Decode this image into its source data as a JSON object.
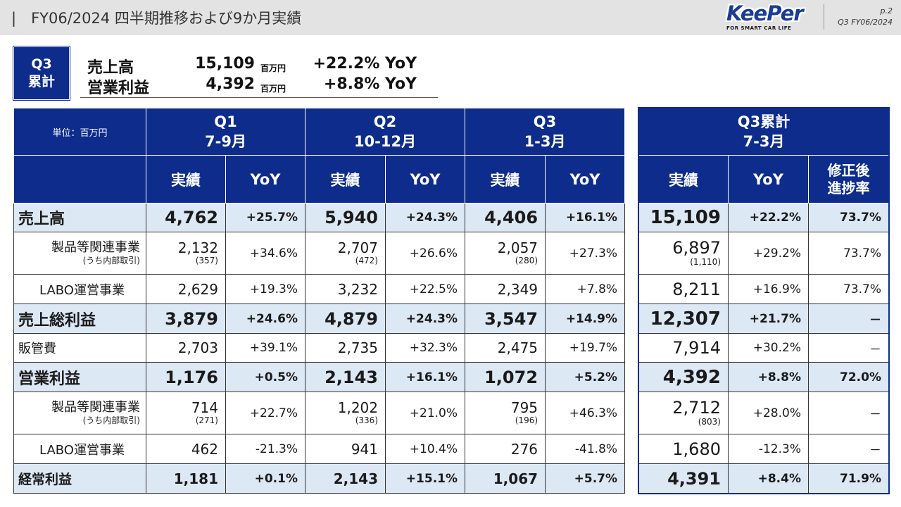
{
  "header": {
    "title": "|　FY06/2024 四半期推移および9か月実績",
    "logo_text": "KeePer",
    "logo_tagline": "FOR SMART CAR LIFE",
    "page": "p.2",
    "doc": "Q3 FY06/2024"
  },
  "summary": {
    "badge_line1": "Q3",
    "badge_line2": "累計",
    "rows": [
      {
        "label": "売上高",
        "value": "15,109",
        "unit": "百万円",
        "yoy": "+22.2% YoY"
      },
      {
        "label": "営業利益",
        "value": "4,392",
        "unit": "百万円",
        "yoy": "+8.8% YoY"
      }
    ]
  },
  "table": {
    "unit_label": "単位：百万円",
    "periods": [
      {
        "q": "Q1",
        "months": "7-9月"
      },
      {
        "q": "Q2",
        "months": "10-12月"
      },
      {
        "q": "Q3",
        "months": "1-3月"
      }
    ],
    "col_actual": "実績",
    "col_yoy": "YoY",
    "cumulative": {
      "q": "Q3累計",
      "months": "7-3月",
      "progress_line1": "修正後",
      "progress_line2": "進捗率"
    },
    "rows": [
      {
        "label": "売上高",
        "q1": "4,762",
        "q1y": "+25.7%",
        "q2": "5,940",
        "q2y": "+24.3%",
        "q3": "4,406",
        "q3y": "+16.1%",
        "c": "15,109",
        "cy": "+22.2%",
        "cp": "73.7%"
      },
      {
        "label": "製品等関連事業",
        "sublabel": "(うち内部取引)",
        "q1": "2,132",
        "q1p": "(357)",
        "q1y": "+34.6%",
        "q2": "2,707",
        "q2p": "(472)",
        "q2y": "+26.6%",
        "q3": "2,057",
        "q3p": "(280)",
        "q3y": "+27.3%",
        "c": "6,897",
        "cpp": "(1,110)",
        "cy": "+29.2%",
        "cp": "73.7%"
      },
      {
        "label": "LABO運営事業",
        "q1": "2,629",
        "q1y": "+19.3%",
        "q2": "3,232",
        "q2y": "+22.5%",
        "q3": "2,349",
        "q3y": "+7.8%",
        "c": "8,211",
        "cy": "+16.9%",
        "cp": "73.7%"
      },
      {
        "label": "売上総利益",
        "q1": "3,879",
        "q1y": "+24.6%",
        "q2": "4,879",
        "q2y": "+24.3%",
        "q3": "3,547",
        "q3y": "+14.9%",
        "c": "12,307",
        "cy": "+21.7%",
        "cp": "－"
      },
      {
        "label": "販管費",
        "q1": "2,703",
        "q1y": "+39.1%",
        "q2": "2,735",
        "q2y": "+32.3%",
        "q3": "2,475",
        "q3y": "+19.7%",
        "c": "7,914",
        "cy": "+30.2%",
        "cp": "－"
      },
      {
        "label": "営業利益",
        "q1": "1,176",
        "q1y": "+0.5%",
        "q2": "2,143",
        "q2y": "+16.1%",
        "q3": "1,072",
        "q3y": "+5.2%",
        "c": "4,392",
        "cy": "+8.8%",
        "cp": "72.0%"
      },
      {
        "label": "製品等関連事業",
        "sublabel": "(うち内部取引)",
        "q1": "714",
        "q1p": "(271)",
        "q1y": "+22.7%",
        "q2": "1,202",
        "q2p": "(336)",
        "q2y": "+21.0%",
        "q3": "795",
        "q3p": "(196)",
        "q3y": "+46.3%",
        "c": "2,712",
        "cpp": "(803)",
        "cy": "+28.0%",
        "cp": "－"
      },
      {
        "label": "LABO運営事業",
        "q1": "462",
        "q1y": "-21.3%",
        "q2": "941",
        "q2y": "+10.4%",
        "q3": "276",
        "q3y": "-41.8%",
        "c": "1,680",
        "cy": "-12.3%",
        "cp": "－"
      },
      {
        "label": "経常利益",
        "q1": "1,181",
        "q1y": "+0.1%",
        "q2": "2,143",
        "q2y": "+15.1%",
        "q3": "1,067",
        "q3y": "+5.7%",
        "c": "4,391",
        "cy": "+8.4%",
        "cp": "71.9%"
      }
    ]
  }
}
